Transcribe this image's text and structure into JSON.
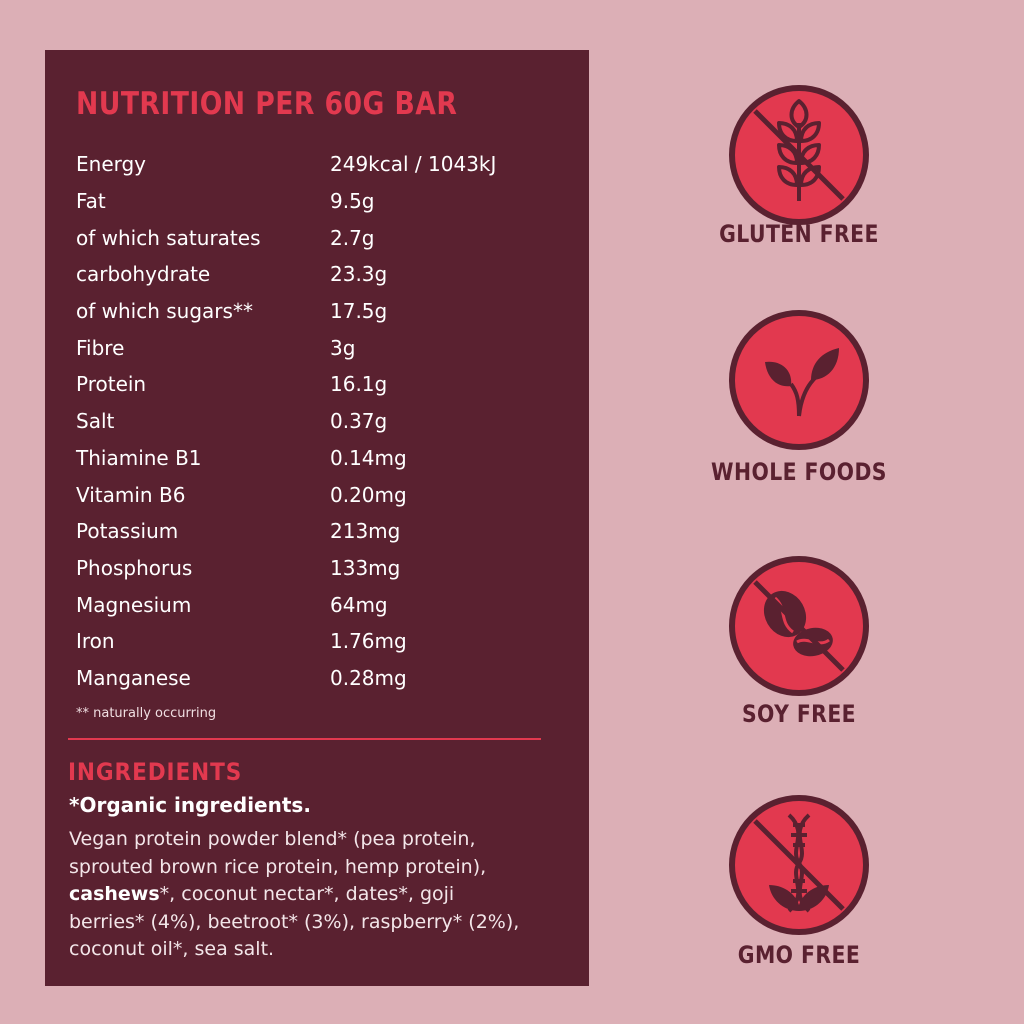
{
  "nutrition": {
    "title": "NUTRITION PER 60G BAR",
    "rows": [
      {
        "label": "Energy",
        "value": "249kcal / 1043kJ"
      },
      {
        "label": "Fat",
        "value": "9.5g"
      },
      {
        "label": "of which saturates",
        "value": "2.7g"
      },
      {
        "label": "carbohydrate",
        "value": "23.3g"
      },
      {
        "label": "of which sugars**",
        "value": "17.5g"
      },
      {
        "label": "Fibre",
        "value": "3g"
      },
      {
        "label": "Protein",
        "value": "16.1g"
      },
      {
        "label": "Salt",
        "value": "0.37g"
      },
      {
        "label": "Thiamine B1",
        "value": "0.14mg"
      },
      {
        "label": "Vitamin B6",
        "value": "0.20mg"
      },
      {
        "label": "Potassium",
        "value": "213mg"
      },
      {
        "label": "Phosphorus",
        "value": "133mg"
      },
      {
        "label": "Magnesium",
        "value": "64mg"
      },
      {
        "label": "Iron",
        "value": "1.76mg"
      },
      {
        "label": "Manganese",
        "value": "0.28mg"
      }
    ],
    "footnote": "** naturally occurring"
  },
  "ingredients": {
    "title": "INGREDIENTS",
    "subtitle": "*Organic ingredients.",
    "line1": "Vegan protein powder blend* (pea protein,",
    "line2": "sprouted brown rice protein, hemp protein),",
    "line3_bold": "cashews",
    "line3_rest": "*, coconut nectar*, dates*, goji",
    "line4": "berries* (4%), beetroot* (3%), raspberry* (2%),",
    "line5": "coconut oil*, sea salt."
  },
  "badges": [
    {
      "label": "GLUTEN FREE",
      "icon": "wheat-crossed-icon"
    },
    {
      "label": "WHOLE FOODS",
      "icon": "leaf-sprout-icon"
    },
    {
      "label": "SOY FREE",
      "icon": "soybean-crossed-icon"
    },
    {
      "label": "GMO FREE",
      "icon": "dna-crossed-icon"
    }
  ],
  "colors": {
    "background": "#dcafb6",
    "panel": "#5a2130",
    "accent": "#e2394f"
  }
}
